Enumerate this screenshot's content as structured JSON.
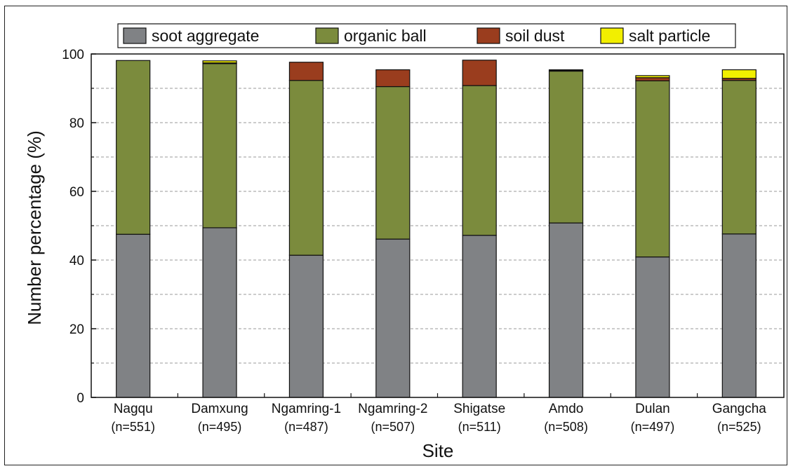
{
  "chart_data": {
    "type": "bar",
    "stacked": true,
    "title": "",
    "xlabel": "Site",
    "ylabel": "Number percentage (%)",
    "ylim": [
      0,
      100
    ],
    "yticks": [
      0,
      20,
      40,
      60,
      80,
      100
    ],
    "grid": "horizontal dashed",
    "legend_placement": "top",
    "categories": [
      "Nagqu",
      "Damxung",
      "Ngamring-1",
      "Ngamring-2",
      "Shigatse",
      "Amdo",
      "Dulan",
      "Gangcha"
    ],
    "sample_sizes": [
      "(n=551)",
      "(n=495)",
      "(n=487)",
      "(n=507)",
      "(n=511)",
      "(n=508)",
      "(n=497)",
      "(n=525)"
    ],
    "series": [
      {
        "name": "soot aggregate",
        "color": "#808285",
        "values": [
          47.5,
          49.4,
          41.4,
          46.1,
          47.2,
          50.8,
          40.9,
          47.6
        ]
      },
      {
        "name": "organic ball",
        "color": "#7b8b3d",
        "values": [
          50.6,
          47.8,
          50.9,
          44.4,
          43.6,
          44.2,
          51.3,
          44.7
        ]
      },
      {
        "name": "soil dust",
        "color": "#9a3d1e",
        "values": [
          0.0,
          0.2,
          5.3,
          4.9,
          7.4,
          0.2,
          0.9,
          0.6
        ]
      },
      {
        "name": "salt particle",
        "color": "#f2ef00",
        "values": [
          0.0,
          0.6,
          0.0,
          0.0,
          0.0,
          0.2,
          0.6,
          2.5
        ]
      }
    ]
  }
}
